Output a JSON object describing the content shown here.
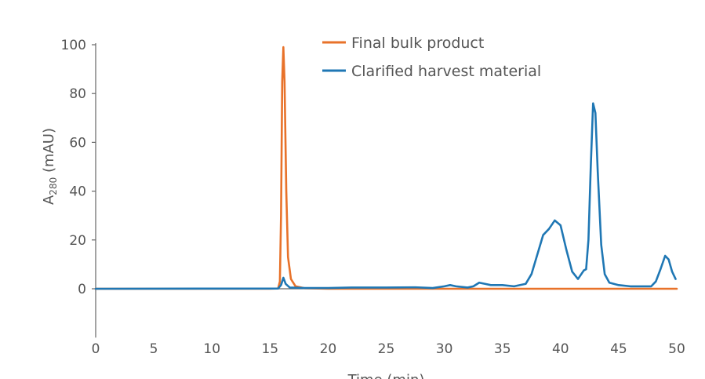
{
  "chart_data": {
    "type": "line",
    "title": "",
    "xlabel": "Time (min)",
    "ylabel": {
      "main": "A",
      "subscript": "280",
      "unit": " (mAU)"
    },
    "xlim": [
      0,
      50
    ],
    "ylim": [
      -20,
      100
    ],
    "x_ticks": [
      "0",
      "5",
      "10",
      "15",
      "20",
      "25",
      "30",
      "35",
      "40",
      "45",
      "50"
    ],
    "y_ticks": [
      "0",
      "20",
      "40",
      "60",
      "80",
      "100"
    ],
    "grid": false,
    "legend": {
      "position": "top-center"
    },
    "series": [
      {
        "name": "Final bulk product",
        "color": "#E8722A",
        "points": [
          [
            0,
            0
          ],
          [
            15.0,
            0
          ],
          [
            15.7,
            0.1
          ],
          [
            15.85,
            3
          ],
          [
            15.95,
            30
          ],
          [
            16.05,
            85
          ],
          [
            16.15,
            99
          ],
          [
            16.25,
            85
          ],
          [
            16.4,
            40
          ],
          [
            16.55,
            13
          ],
          [
            16.8,
            4
          ],
          [
            17.2,
            1
          ],
          [
            18.0,
            0.2
          ],
          [
            20,
            0
          ],
          [
            30,
            0
          ],
          [
            40,
            0
          ],
          [
            50,
            0
          ]
        ]
      },
      {
        "name": "Clarified harvest material",
        "color": "#1F77B4",
        "points": [
          [
            0,
            0
          ],
          [
            15.7,
            0.1
          ],
          [
            15.95,
            1.5
          ],
          [
            16.15,
            4.5
          ],
          [
            16.35,
            2
          ],
          [
            16.7,
            0.5
          ],
          [
            18,
            0.3
          ],
          [
            20,
            0.3
          ],
          [
            22,
            0.5
          ],
          [
            25,
            0.5
          ],
          [
            27.5,
            0.6
          ],
          [
            29,
            0.3
          ],
          [
            30,
            1
          ],
          [
            30.5,
            1.5
          ],
          [
            31,
            1
          ],
          [
            32,
            0.5
          ],
          [
            32.5,
            1
          ],
          [
            33,
            2.5
          ],
          [
            33.5,
            2
          ],
          [
            34,
            1.5
          ],
          [
            35,
            1.5
          ],
          [
            36,
            1
          ],
          [
            37,
            2
          ],
          [
            37.5,
            6
          ],
          [
            38,
            14
          ],
          [
            38.5,
            22
          ],
          [
            39,
            24.5
          ],
          [
            39.5,
            28
          ],
          [
            40,
            26
          ],
          [
            40.5,
            16
          ],
          [
            41.0,
            7
          ],
          [
            41.5,
            4
          ],
          [
            42.0,
            7.5
          ],
          [
            42.2,
            8
          ],
          [
            42.4,
            20
          ],
          [
            42.6,
            50
          ],
          [
            42.8,
            76
          ],
          [
            43.0,
            72
          ],
          [
            43.2,
            48
          ],
          [
            43.5,
            18
          ],
          [
            43.8,
            6
          ],
          [
            44.2,
            2.5
          ],
          [
            45,
            1.5
          ],
          [
            46,
            1
          ],
          [
            47,
            1
          ],
          [
            47.8,
            1
          ],
          [
            48.2,
            3
          ],
          [
            48.6,
            8
          ],
          [
            49.0,
            13.5
          ],
          [
            49.3,
            12
          ],
          [
            49.6,
            7
          ],
          [
            49.9,
            4
          ]
        ]
      }
    ]
  }
}
